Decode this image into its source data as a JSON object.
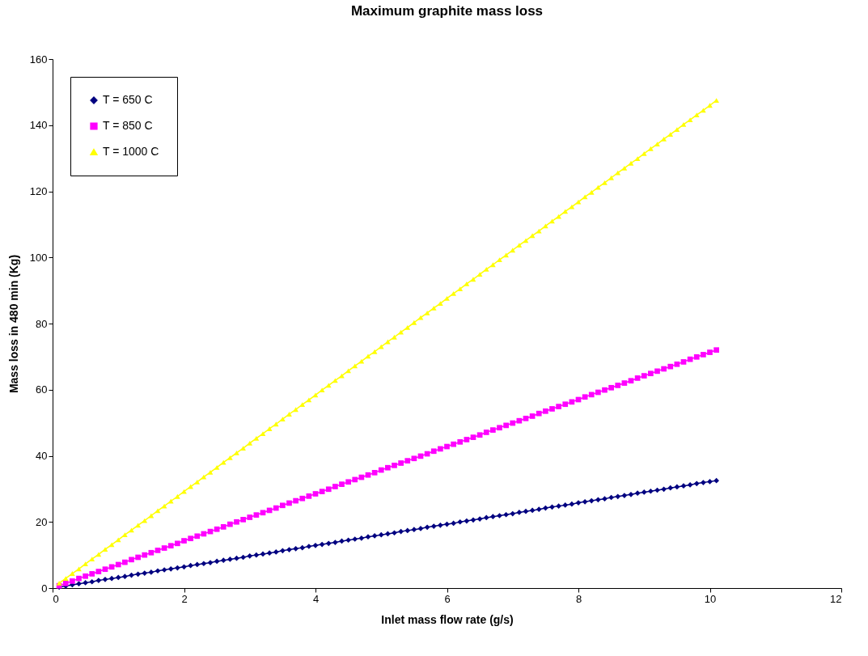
{
  "chart_data": {
    "type": "line",
    "title": "Maximum graphite mass loss",
    "xlabel": "Inlet mass flow rate (g/s)",
    "ylabel": "Mass loss in 480 min (Kg)",
    "x": [
      0.1,
      0.2,
      0.3,
      0.4,
      0.5,
      0.6,
      0.7,
      0.8,
      0.9,
      1.0,
      1.1,
      1.2,
      1.3,
      1.4,
      1.5,
      1.6,
      1.7,
      1.8,
      1.9,
      2.0,
      2.1,
      2.2,
      2.3,
      2.4,
      2.5,
      2.6,
      2.7,
      2.8,
      2.9,
      3.0,
      3.1,
      3.2,
      3.3,
      3.4,
      3.5,
      3.6,
      3.7,
      3.8,
      3.9,
      4.0,
      4.1,
      4.2,
      4.3,
      4.4,
      4.5,
      4.6,
      4.7,
      4.8,
      4.9,
      5.0,
      5.1,
      5.2,
      5.3,
      5.4,
      5.5,
      5.6,
      5.7,
      5.8,
      5.9,
      6.0,
      6.1,
      6.2,
      6.3,
      6.4,
      6.5,
      6.6,
      6.7,
      6.8,
      6.9,
      7.0,
      7.1,
      7.2,
      7.3,
      7.4,
      7.5,
      7.6,
      7.7,
      7.8,
      7.9,
      8.0,
      8.1,
      8.2,
      8.3,
      8.4,
      8.5,
      8.6,
      8.7,
      8.8,
      8.9,
      9.0,
      9.1,
      9.2,
      9.3,
      9.4,
      9.5,
      9.6,
      9.7,
      9.8,
      9.9,
      10.0,
      10.1
    ],
    "series": [
      {
        "name": "T = 650 C",
        "color": "#000080",
        "marker": "diamond",
        "values": [
          0.3,
          0.6,
          1.0,
          1.3,
          1.6,
          1.9,
          2.3,
          2.6,
          2.9,
          3.2,
          3.5,
          3.9,
          4.2,
          4.5,
          4.8,
          5.2,
          5.5,
          5.8,
          6.1,
          6.4,
          6.8,
          7.1,
          7.4,
          7.7,
          8.1,
          8.4,
          8.7,
          9.0,
          9.3,
          9.7,
          10.0,
          10.3,
          10.6,
          10.9,
          11.3,
          11.6,
          11.9,
          12.2,
          12.6,
          12.9,
          13.2,
          13.5,
          13.8,
          14.2,
          14.5,
          14.8,
          15.1,
          15.5,
          15.8,
          16.1,
          16.4,
          16.7,
          17.1,
          17.4,
          17.7,
          18.0,
          18.4,
          18.7,
          19.0,
          19.3,
          19.6,
          20.0,
          20.3,
          20.6,
          20.9,
          21.3,
          21.6,
          21.9,
          22.2,
          22.5,
          22.9,
          23.2,
          23.5,
          23.8,
          24.2,
          24.5,
          24.8,
          25.1,
          25.4,
          25.8,
          26.1,
          26.4,
          26.7,
          27.0,
          27.4,
          27.7,
          28.0,
          28.3,
          28.7,
          29.0,
          29.3,
          29.6,
          29.9,
          30.3,
          30.6,
          30.9,
          31.2,
          31.6,
          31.9,
          32.2,
          32.5
        ]
      },
      {
        "name": "T = 850 C",
        "color": "#ff00ff",
        "marker": "square",
        "values": [
          0.7,
          1.4,
          2.1,
          2.9,
          3.6,
          4.3,
          5.0,
          5.7,
          6.4,
          7.1,
          7.8,
          8.6,
          9.3,
          10.0,
          10.7,
          11.4,
          12.1,
          12.8,
          13.5,
          14.3,
          15.0,
          15.7,
          16.4,
          17.1,
          17.8,
          18.5,
          19.3,
          20.0,
          20.7,
          21.4,
          22.1,
          22.8,
          23.5,
          24.2,
          25.0,
          25.7,
          26.4,
          27.1,
          27.8,
          28.5,
          29.2,
          29.9,
          30.7,
          31.4,
          32.1,
          32.8,
          33.5,
          34.2,
          34.9,
          35.7,
          36.4,
          37.1,
          37.8,
          38.5,
          39.2,
          39.9,
          40.6,
          41.4,
          42.1,
          42.8,
          43.5,
          44.2,
          44.9,
          45.6,
          46.3,
          47.1,
          47.8,
          48.5,
          49.2,
          49.9,
          50.6,
          51.3,
          52.0,
          52.8,
          53.5,
          54.2,
          54.9,
          55.6,
          56.3,
          57.0,
          57.8,
          58.5,
          59.2,
          59.9,
          60.6,
          61.3,
          62.0,
          62.7,
          63.5,
          64.2,
          64.9,
          65.6,
          66.3,
          67.0,
          67.7,
          68.4,
          69.2,
          69.9,
          70.6,
          71.3,
          72.0
        ]
      },
      {
        "name": "T = 1000 C",
        "color": "#ffff00",
        "marker": "triangle",
        "values": [
          1.5,
          2.9,
          4.4,
          5.8,
          7.3,
          8.8,
          10.2,
          11.7,
          13.1,
          14.6,
          16.1,
          17.5,
          19.0,
          20.4,
          21.9,
          23.4,
          24.8,
          26.3,
          27.7,
          29.2,
          30.7,
          32.1,
          33.6,
          35.0,
          36.5,
          38.0,
          39.4,
          40.9,
          42.3,
          43.8,
          45.3,
          46.7,
          48.2,
          49.6,
          51.1,
          52.6,
          54.0,
          55.5,
          56.9,
          58.4,
          59.9,
          61.3,
          62.8,
          64.2,
          65.7,
          67.2,
          68.6,
          70.1,
          71.5,
          73.0,
          74.5,
          75.9,
          77.4,
          78.8,
          80.3,
          81.8,
          83.2,
          84.7,
          86.1,
          87.6,
          89.1,
          90.5,
          92.0,
          93.4,
          94.9,
          96.4,
          97.8,
          99.3,
          100.7,
          102.2,
          103.7,
          105.1,
          106.6,
          108.0,
          109.5,
          111.0,
          112.4,
          113.9,
          115.3,
          116.8,
          118.3,
          119.7,
          121.2,
          122.6,
          124.1,
          125.6,
          127.0,
          128.5,
          129.9,
          131.4,
          132.9,
          134.3,
          135.8,
          137.2,
          138.7,
          140.2,
          141.6,
          143.1,
          144.5,
          146.0,
          147.5
        ]
      }
    ],
    "xlim": [
      0,
      12
    ],
    "xticks": [
      0,
      2,
      4,
      6,
      8,
      10,
      12
    ],
    "ylim": [
      0,
      160
    ],
    "yticks": [
      0,
      20,
      40,
      60,
      80,
      100,
      120,
      140,
      160
    ],
    "grid": false,
    "legend": "top left",
    "line_style": "solid"
  }
}
